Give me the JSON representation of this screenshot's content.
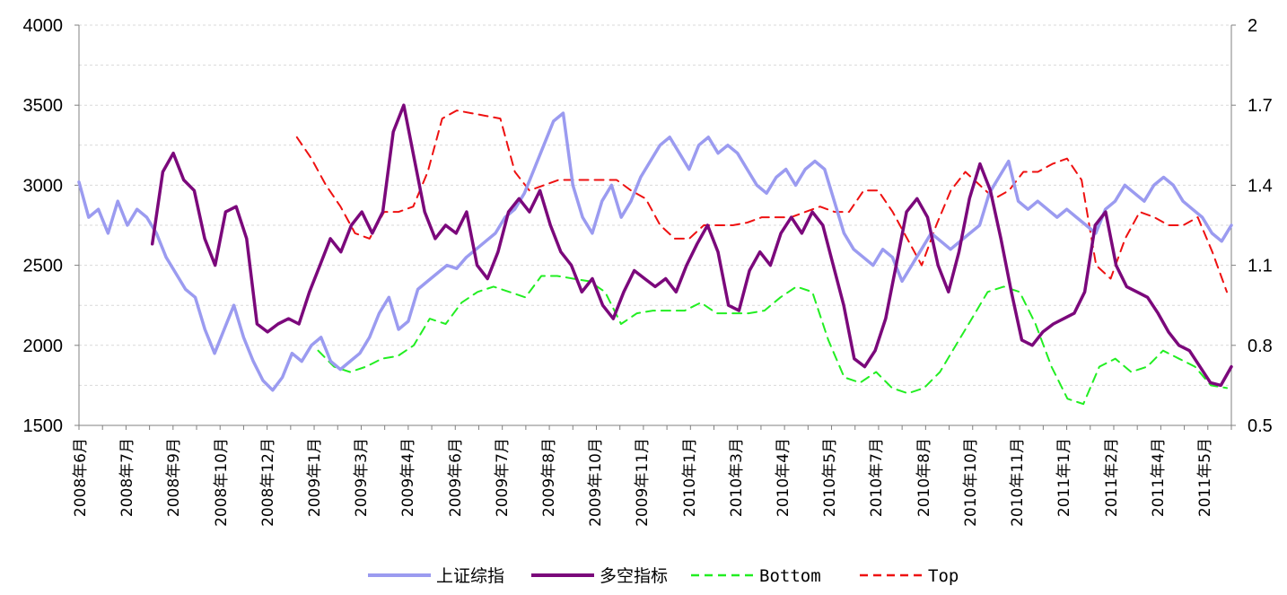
{
  "chart_data": {
    "type": "line",
    "title": "",
    "xlabel": "",
    "ylabel": "",
    "y_left_ticks": [
      "4000",
      "3500",
      "3000",
      "2500",
      "2000",
      "1500"
    ],
    "y_right_ticks": [
      "2",
      "1.7",
      "1.4",
      "1.1",
      "0.8",
      "0.5"
    ],
    "ylim_left": [
      1500,
      4000
    ],
    "ylim_right": [
      0.5,
      2.0
    ],
    "x_tick_labels": [
      "2008年6月",
      "2008年7月",
      "2008年9月",
      "2008年10月",
      "2008年12月",
      "2009年1月",
      "2009年3月",
      "2009年4月",
      "2009年6月",
      "2009年7月",
      "2009年8月",
      "2009年10月",
      "2009年11月",
      "2010年1月",
      "2010年3月",
      "2010年4月",
      "2010年5月",
      "2010年7月",
      "2010年8月",
      "2010年10月",
      "2010年11月",
      "2011年1月",
      "2011年2月",
      "2011年4月",
      "2011年5月"
    ],
    "grid": "horizontal",
    "legend_position": "bottom",
    "series": [
      {
        "name": "上证综指",
        "axis": "left",
        "color": "#9b9bf0",
        "style": "solid",
        "values": [
          3020,
          2800,
          2850,
          2700,
          2900,
          2750,
          2850,
          2800,
          2700,
          2550,
          2450,
          2350,
          2300,
          2100,
          1950,
          2100,
          2250,
          2050,
          1900,
          1780,
          1720,
          1800,
          1950,
          1900,
          2000,
          2050,
          1900,
          1850,
          1900,
          1950,
          2050,
          2200,
          2300,
          2100,
          2150,
          2350,
          2400,
          2450,
          2500,
          2480,
          2550,
          2600,
          2650,
          2700,
          2800,
          2850,
          2950,
          3100,
          3250,
          3400,
          3450,
          3000,
          2800,
          2700,
          2900,
          3000,
          2800,
          2900,
          3050,
          3150,
          3250,
          3300,
          3200,
          3100,
          3250,
          3300,
          3200,
          3250,
          3200,
          3100,
          3000,
          2950,
          3050,
          3100,
          3000,
          3100,
          3150,
          3100,
          2900,
          2700,
          2600,
          2550,
          2500,
          2600,
          2550,
          2400,
          2500,
          2600,
          2700,
          2650,
          2600,
          2650,
          2700,
          2750,
          2950,
          3050,
          3150,
          2900,
          2850,
          2900,
          2850,
          2800,
          2850,
          2800,
          2750,
          2700,
          2850,
          2900,
          3000,
          2950,
          2900,
          3000,
          3050,
          3000,
          2900,
          2850,
          2800,
          2700,
          2650,
          2750
        ]
      },
      {
        "name": "多空指标",
        "axis": "right",
        "color": "#7b087b",
        "style": "solid",
        "values": [
          null,
          null,
          null,
          null,
          null,
          null,
          null,
          1.18,
          1.45,
          1.52,
          1.42,
          1.38,
          1.2,
          1.1,
          1.3,
          1.32,
          1.2,
          0.88,
          0.85,
          0.88,
          0.9,
          0.88,
          1.0,
          1.1,
          1.2,
          1.15,
          1.25,
          1.3,
          1.22,
          1.3,
          1.6,
          1.7,
          1.5,
          1.3,
          1.2,
          1.25,
          1.22,
          1.3,
          1.1,
          1.05,
          1.15,
          1.3,
          1.35,
          1.3,
          1.38,
          1.25,
          1.15,
          1.1,
          1.0,
          1.05,
          0.95,
          0.9,
          1.0,
          1.08,
          1.05,
          1.02,
          1.05,
          1.0,
          1.1,
          1.18,
          1.25,
          1.15,
          0.95,
          0.93,
          1.08,
          1.15,
          1.1,
          1.22,
          1.28,
          1.22,
          1.3,
          1.25,
          1.1,
          0.95,
          0.75,
          0.72,
          0.78,
          0.9,
          1.1,
          1.3,
          1.35,
          1.28,
          1.1,
          1.0,
          1.15,
          1.35,
          1.48,
          1.38,
          1.2,
          1.0,
          0.82,
          0.8,
          0.85,
          0.88,
          0.9,
          0.92,
          1.0,
          1.25,
          1.3,
          1.1,
          1.02,
          1.0,
          0.98,
          0.92,
          0.85,
          0.8,
          0.78,
          0.72,
          0.66,
          0.65,
          0.72
        ]
      },
      {
        "name": "Bottom",
        "axis": "right",
        "color": "#22ee22",
        "style": "dashed",
        "values": [
          null,
          null,
          null,
          null,
          null,
          null,
          null,
          null,
          null,
          null,
          null,
          null,
          null,
          null,
          null,
          0.78,
          0.72,
          0.7,
          0.72,
          0.75,
          0.76,
          0.8,
          0.9,
          0.88,
          0.96,
          1.0,
          1.02,
          1.0,
          0.98,
          1.06,
          1.06,
          1.05,
          1.04,
          1.0,
          0.88,
          0.92,
          0.93,
          0.93,
          0.93,
          0.96,
          0.92,
          0.92,
          0.92,
          0.93,
          0.98,
          1.02,
          1.0,
          0.82,
          0.68,
          0.66,
          0.7,
          0.64,
          0.62,
          0.64,
          0.7,
          0.8,
          0.9,
          1.0,
          1.02,
          1.0,
          0.88,
          0.72,
          0.6,
          0.58,
          0.72,
          0.75,
          0.7,
          0.72,
          0.78,
          0.75,
          0.72,
          0.65,
          0.64
        ]
      },
      {
        "name": "Top",
        "axis": "right",
        "color": "#ee1111",
        "style": "dashed",
        "values": [
          null,
          null,
          null,
          null,
          null,
          null,
          null,
          null,
          null,
          null,
          null,
          null,
          null,
          null,
          null,
          1.58,
          1.5,
          1.4,
          1.32,
          1.22,
          1.2,
          1.3,
          1.3,
          1.32,
          1.45,
          1.65,
          1.68,
          1.67,
          1.66,
          1.65,
          1.45,
          1.38,
          1.4,
          1.42,
          1.42,
          1.42,
          1.42,
          1.42,
          1.38,
          1.35,
          1.25,
          1.2,
          1.2,
          1.25,
          1.25,
          1.25,
          1.26,
          1.28,
          1.28,
          1.28,
          1.3,
          1.32,
          1.3,
          1.3,
          1.38,
          1.38,
          1.3,
          1.2,
          1.1,
          1.25,
          1.38,
          1.45,
          1.4,
          1.35,
          1.38,
          1.45,
          1.45,
          1.48,
          1.5,
          1.42,
          1.1,
          1.05,
          1.2,
          1.3,
          1.28,
          1.25,
          1.25,
          1.28,
          1.15,
          1.0
        ]
      }
    ]
  },
  "legend": {
    "items": [
      {
        "label": "上证综指",
        "color": "#9b9bf0",
        "dash": "none",
        "mono": false
      },
      {
        "label": "多空指标",
        "color": "#7b087b",
        "dash": "none",
        "mono": false
      },
      {
        "label": "Bottom",
        "color": "#22ee22",
        "dash": "9,6",
        "mono": true
      },
      {
        "label": "Top",
        "color": "#ee1111",
        "dash": "9,6",
        "mono": true
      }
    ]
  }
}
